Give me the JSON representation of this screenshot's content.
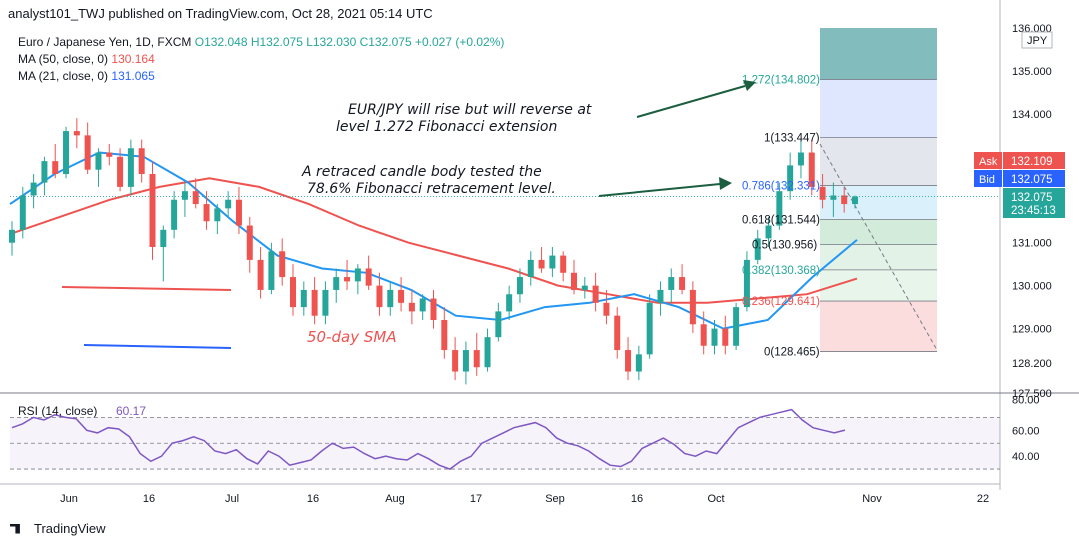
{
  "header": {
    "text": "analyst101_TWJ published on TradingView.com, Oct 28, 2021 05:14 UTC"
  },
  "legend": {
    "symbol": "Euro / Japanese Yen, 1D, FXCM",
    "ohlc": "O132.048 H132.075 L132.030 C132.075 +0.027 (+0.02%)",
    "ma50_label": "MA (50, close, 0)",
    "ma50_value": "130.164",
    "ma21_label": "MA (21, close, 0)",
    "ma21_value": "131.065"
  },
  "annotations": {
    "top_line1": "EUR/JPY will rise but will reverse at",
    "top_line2": "level 1.272 Fibonacci extension",
    "mid_line1": "A retraced candle body tested the",
    "mid_line2": "78.6% Fibonacci retracement level.",
    "sma_label": "50-day SMA"
  },
  "price_axis": {
    "currency": "JPY",
    "ticks": [
      "136.000",
      "135.000",
      "134.000",
      "131.000",
      "130.000",
      "129.000",
      "128.200",
      "127.500"
    ],
    "ask_label": "Ask",
    "ask_value": "132.109",
    "bid_label": "Bid",
    "bid_value": "132.075",
    "last_value": "132.075",
    "countdown": "23:45:13"
  },
  "rsi": {
    "label": "RSI (14, close)",
    "value": "60.17",
    "ticks": [
      "80.00",
      "60.00",
      "40.00"
    ]
  },
  "time_axis": {
    "ticks": [
      "Jun",
      "16",
      "Jul",
      "16",
      "Aug",
      "17",
      "Sep",
      "16",
      "Oct",
      "Nov",
      "22"
    ]
  },
  "footer": {
    "brand": "TradingView"
  },
  "colors": {
    "up": "#26a69a",
    "down": "#ef5350",
    "ma50": "#ef5350",
    "ma21": "#2196f3",
    "rsi": "#7e57c2"
  },
  "chart_data": {
    "type": "candlestick",
    "title": "Euro / Japanese Yen, 1D, FXCM",
    "ylim": [
      127.5,
      136.0
    ],
    "x_ticks": [
      "Jun",
      "16",
      "Jul",
      "16",
      "Aug",
      "17",
      "Sep",
      "16",
      "Oct",
      "Nov",
      "22"
    ],
    "candles": [
      {
        "o": 131.0,
        "h": 131.5,
        "l": 130.7,
        "c": 131.3
      },
      {
        "o": 131.3,
        "h": 132.3,
        "l": 131.1,
        "c": 132.1
      },
      {
        "o": 132.1,
        "h": 132.6,
        "l": 131.8,
        "c": 132.4
      },
      {
        "o": 132.4,
        "h": 133.0,
        "l": 132.1,
        "c": 132.9
      },
      {
        "o": 132.9,
        "h": 133.3,
        "l": 132.5,
        "c": 132.6
      },
      {
        "o": 132.6,
        "h": 133.7,
        "l": 132.5,
        "c": 133.6
      },
      {
        "o": 133.6,
        "h": 133.9,
        "l": 133.2,
        "c": 133.5
      },
      {
        "o": 133.5,
        "h": 133.8,
        "l": 132.6,
        "c": 132.7
      },
      {
        "o": 132.7,
        "h": 133.2,
        "l": 132.3,
        "c": 133.1
      },
      {
        "o": 133.1,
        "h": 133.3,
        "l": 132.8,
        "c": 133.0
      },
      {
        "o": 133.0,
        "h": 133.2,
        "l": 132.2,
        "c": 132.3
      },
      {
        "o": 132.3,
        "h": 133.4,
        "l": 132.1,
        "c": 133.2
      },
      {
        "o": 133.2,
        "h": 133.4,
        "l": 132.4,
        "c": 132.6
      },
      {
        "o": 132.6,
        "h": 132.9,
        "l": 130.6,
        "c": 130.9
      },
      {
        "o": 130.9,
        "h": 131.4,
        "l": 130.1,
        "c": 131.3
      },
      {
        "o": 131.3,
        "h": 132.2,
        "l": 131.1,
        "c": 132.0
      },
      {
        "o": 132.0,
        "h": 132.4,
        "l": 131.6,
        "c": 132.2
      },
      {
        "o": 132.2,
        "h": 132.5,
        "l": 131.8,
        "c": 131.9
      },
      {
        "o": 131.9,
        "h": 132.2,
        "l": 131.3,
        "c": 131.5
      },
      {
        "o": 131.5,
        "h": 131.9,
        "l": 131.2,
        "c": 131.8
      },
      {
        "o": 131.8,
        "h": 132.2,
        "l": 131.6,
        "c": 132.0
      },
      {
        "o": 132.0,
        "h": 132.3,
        "l": 131.2,
        "c": 131.4
      },
      {
        "o": 131.4,
        "h": 131.6,
        "l": 130.3,
        "c": 130.6
      },
      {
        "o": 130.6,
        "h": 130.9,
        "l": 129.7,
        "c": 129.9
      },
      {
        "o": 129.9,
        "h": 131.0,
        "l": 129.8,
        "c": 130.8
      },
      {
        "o": 130.8,
        "h": 131.1,
        "l": 130.0,
        "c": 130.2
      },
      {
        "o": 130.2,
        "h": 130.5,
        "l": 129.3,
        "c": 129.5
      },
      {
        "o": 129.5,
        "h": 130.1,
        "l": 129.3,
        "c": 129.9
      },
      {
        "o": 129.9,
        "h": 130.2,
        "l": 129.1,
        "c": 129.3
      },
      {
        "o": 129.3,
        "h": 130.1,
        "l": 129.1,
        "c": 129.9
      },
      {
        "o": 129.9,
        "h": 130.4,
        "l": 129.6,
        "c": 130.2
      },
      {
        "o": 130.2,
        "h": 130.6,
        "l": 129.9,
        "c": 130.1
      },
      {
        "o": 130.1,
        "h": 130.5,
        "l": 129.8,
        "c": 130.4
      },
      {
        "o": 130.4,
        "h": 130.7,
        "l": 129.9,
        "c": 130.0
      },
      {
        "o": 130.0,
        "h": 130.3,
        "l": 129.3,
        "c": 129.5
      },
      {
        "o": 129.5,
        "h": 130.1,
        "l": 129.3,
        "c": 129.9
      },
      {
        "o": 129.9,
        "h": 130.2,
        "l": 129.4,
        "c": 129.6
      },
      {
        "o": 129.6,
        "h": 129.9,
        "l": 129.1,
        "c": 129.4
      },
      {
        "o": 129.4,
        "h": 129.8,
        "l": 129.2,
        "c": 129.7
      },
      {
        "o": 129.7,
        "h": 129.9,
        "l": 129.0,
        "c": 129.2
      },
      {
        "o": 129.2,
        "h": 129.5,
        "l": 128.3,
        "c": 128.5
      },
      {
        "o": 128.5,
        "h": 128.8,
        "l": 127.8,
        "c": 128.0
      },
      {
        "o": 128.0,
        "h": 128.7,
        "l": 127.7,
        "c": 128.5
      },
      {
        "o": 128.5,
        "h": 128.9,
        "l": 127.9,
        "c": 128.1
      },
      {
        "o": 128.1,
        "h": 129.0,
        "l": 128.0,
        "c": 128.8
      },
      {
        "o": 128.8,
        "h": 129.6,
        "l": 128.7,
        "c": 129.4
      },
      {
        "o": 129.4,
        "h": 130.0,
        "l": 129.2,
        "c": 129.8
      },
      {
        "o": 129.8,
        "h": 130.4,
        "l": 129.6,
        "c": 130.2
      },
      {
        "o": 130.2,
        "h": 130.8,
        "l": 130.0,
        "c": 130.6
      },
      {
        "o": 130.6,
        "h": 130.9,
        "l": 130.3,
        "c": 130.4
      },
      {
        "o": 130.4,
        "h": 130.9,
        "l": 130.2,
        "c": 130.7
      },
      {
        "o": 130.7,
        "h": 130.8,
        "l": 130.1,
        "c": 130.3
      },
      {
        "o": 130.3,
        "h": 130.6,
        "l": 129.8,
        "c": 129.9
      },
      {
        "o": 129.9,
        "h": 130.2,
        "l": 129.7,
        "c": 130.0
      },
      {
        "o": 130.0,
        "h": 130.3,
        "l": 129.4,
        "c": 129.6
      },
      {
        "o": 129.6,
        "h": 129.9,
        "l": 129.1,
        "c": 129.3
      },
      {
        "o": 129.3,
        "h": 129.5,
        "l": 128.3,
        "c": 128.5
      },
      {
        "o": 128.5,
        "h": 128.8,
        "l": 127.8,
        "c": 128.0
      },
      {
        "o": 128.0,
        "h": 128.6,
        "l": 127.8,
        "c": 128.4
      },
      {
        "o": 128.4,
        "h": 129.8,
        "l": 128.3,
        "c": 129.6
      },
      {
        "o": 129.6,
        "h": 130.1,
        "l": 129.3,
        "c": 129.9
      },
      {
        "o": 129.9,
        "h": 130.4,
        "l": 129.6,
        "c": 130.2
      },
      {
        "o": 130.2,
        "h": 130.5,
        "l": 129.8,
        "c": 129.9
      },
      {
        "o": 129.9,
        "h": 130.1,
        "l": 128.9,
        "c": 129.1
      },
      {
        "o": 129.1,
        "h": 129.4,
        "l": 128.4,
        "c": 128.6
      },
      {
        "o": 128.6,
        "h": 129.2,
        "l": 128.4,
        "c": 129.0
      },
      {
        "o": 129.0,
        "h": 129.3,
        "l": 128.4,
        "c": 128.6
      },
      {
        "o": 128.6,
        "h": 129.6,
        "l": 128.5,
        "c": 129.5
      },
      {
        "o": 129.5,
        "h": 130.8,
        "l": 129.4,
        "c": 130.6
      },
      {
        "o": 130.6,
        "h": 131.3,
        "l": 130.5,
        "c": 131.1
      },
      {
        "o": 131.1,
        "h": 131.6,
        "l": 130.9,
        "c": 131.4
      },
      {
        "o": 131.4,
        "h": 132.4,
        "l": 131.3,
        "c": 132.2
      },
      {
        "o": 132.2,
        "h": 133.1,
        "l": 132.0,
        "c": 132.8
      },
      {
        "o": 132.8,
        "h": 133.4,
        "l": 132.5,
        "c": 133.1
      },
      {
        "o": 133.1,
        "h": 133.4,
        "l": 132.1,
        "c": 132.3
      },
      {
        "o": 132.3,
        "h": 132.6,
        "l": 131.8,
        "c": 132.0
      },
      {
        "o": 132.0,
        "h": 132.4,
        "l": 131.6,
        "c": 132.1
      },
      {
        "o": 132.1,
        "h": 132.3,
        "l": 131.7,
        "c": 131.9
      },
      {
        "o": 131.9,
        "h": 132.1,
        "l": 131.8,
        "c": 132.075
      }
    ],
    "ma50": {
      "name": "MA (50, close, 0)",
      "start": 131.2,
      "values": [
        131.2,
        131.6,
        132.0,
        132.3,
        132.5,
        132.3,
        131.9,
        131.4,
        131.0,
        130.7,
        130.4,
        130.0,
        129.8,
        129.6,
        129.6,
        129.7,
        129.8,
        130.164
      ]
    },
    "ma21": {
      "name": "MA (21, close, 0)",
      "values": [
        131.9,
        132.6,
        133.1,
        133.0,
        132.4,
        131.5,
        130.7,
        130.4,
        130.3,
        129.9,
        129.3,
        129.2,
        129.5,
        129.6,
        129.8,
        129.5,
        129.0,
        129.2,
        130.2,
        131.065
      ]
    },
    "fibonacci": [
      {
        "label": "1.272(134.802)",
        "value": 134.802
      },
      {
        "label": "1(133.447)",
        "value": 133.447
      },
      {
        "label": "0.786(132.331)",
        "value": 132.331
      },
      {
        "label": "0.618(131.544)",
        "value": 131.544
      },
      {
        "label": "0.5(130.956)",
        "value": 130.956
      },
      {
        "label": "0.382(130.368)",
        "value": 130.368
      },
      {
        "label": "0.236(129.641)",
        "value": 129.641
      },
      {
        "label": "0(128.465)",
        "value": 128.465
      }
    ],
    "rsi": {
      "name": "RSI (14, close)",
      "ylim": [
        20,
        85
      ],
      "last": 60.17,
      "values": [
        62,
        65,
        70,
        68,
        72,
        70,
        69,
        60,
        58,
        62,
        61,
        55,
        42,
        36,
        40,
        50,
        52,
        55,
        52,
        44,
        42,
        45,
        38,
        34,
        44,
        40,
        33,
        35,
        37,
        44,
        50,
        46,
        47,
        42,
        38,
        40,
        38,
        37,
        42,
        38,
        33,
        30,
        36,
        40,
        50,
        54,
        58,
        62,
        64,
        66,
        62,
        54,
        50,
        48,
        44,
        38,
        33,
        32,
        36,
        46,
        50,
        54,
        49,
        42,
        40,
        44,
        42,
        52,
        62,
        66,
        70,
        72,
        74,
        76,
        68,
        62,
        60,
        58,
        60.17
      ]
    }
  }
}
